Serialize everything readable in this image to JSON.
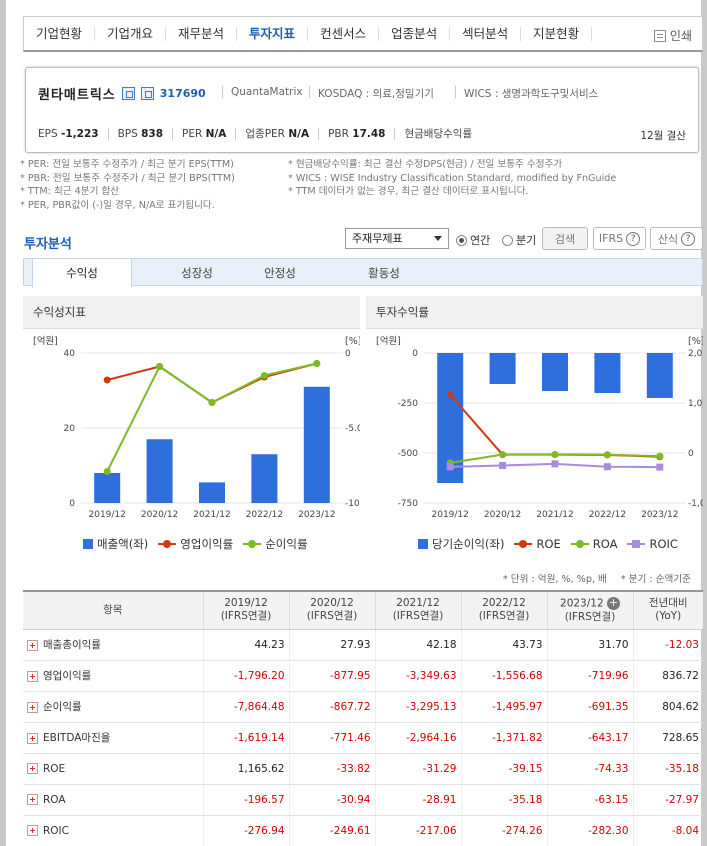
{
  "nav": {
    "items": [
      "기업현황",
      "기업개요",
      "재무분석",
      "투자지표",
      "컨센서스",
      "업종분석",
      "섹터분석",
      "지분현황"
    ],
    "active_index": 3,
    "print_label": "인쇄"
  },
  "company": {
    "name": "퀀타매트릭스",
    "code": "317690",
    "english": "QuantaMatrix",
    "market": "KOSDAQ : 의료,정밀기기",
    "wics": "WICS : 생명과학도구및서비스",
    "metrics": [
      {
        "label": "EPS",
        "value": "-1,223"
      },
      {
        "label": "BPS",
        "value": "838"
      },
      {
        "label": "PER",
        "value": "N/A"
      },
      {
        "label": "업종PER",
        "value": "N/A"
      },
      {
        "label": "PBR",
        "value": "17.48"
      },
      {
        "label": "현금배당수익률",
        "value": ""
      }
    ],
    "fiscal": "12월 결산"
  },
  "notes_left": [
    "* PER: 전일 보통주 수정주가 / 최근 분기 EPS(TTM)",
    "* PBR: 전일 보통주 수정주가 / 최근 분기 BPS(TTM)",
    "* TTM: 최근 4분기 합산",
    "* PER, PBR값이 (-)일 경우, N/A로 표기됩니다."
  ],
  "notes_right": [
    "* 현금배당수익률: 최근 결산 수정DPS(현금) / 전일 보통주 수정주가",
    "* WICS : WISE Industry Classification Standard, modified by FnGuide",
    "* TTM 데이터가 없는 경우, 최근 결산 데이터로 표시됩니다."
  ],
  "analysis": {
    "title": "투자분석",
    "select_value": "주재무제표",
    "radio_annual": "연간",
    "radio_quarter": "분기",
    "search_label": "검색",
    "ifrs_label": "IFRS",
    "formula_label": "산식"
  },
  "tabs": [
    "수익성",
    "성장성",
    "안정성",
    "활동성"
  ],
  "left_panel": {
    "title": "수익성지표",
    "unit_left": "[억원]",
    "unit_right": "[%]",
    "legend": [
      "매출액(좌)",
      "영업이익률",
      "순이익률"
    ]
  },
  "right_panel": {
    "title": "투자수익률",
    "unit_left": "[억원]",
    "unit_right": "[%]",
    "legend": [
      "당기순이익(좌)",
      "ROE",
      "ROA",
      "ROIC"
    ]
  },
  "units_note": "* 단위 : 억원, %, %p, 배",
  "quarter_note": "* 분기 : 순액기준",
  "colors": {
    "bar": "#2f6fdc",
    "red": "#d03a12",
    "green": "#7cbb25",
    "purple": "#a98ce0",
    "accent": "#1a5fb4"
  },
  "chart_data": [
    {
      "type": "bar",
      "title": "수익성지표",
      "categories": [
        "2019/12",
        "2020/12",
        "2021/12",
        "2022/12",
        "2023/12"
      ],
      "ylim_left": [
        0,
        40
      ],
      "yticks_left": [
        "40",
        "20",
        "0"
      ],
      "ylim_right": [
        -10,
        0
      ],
      "yticks_right": [
        "0",
        "-5.0",
        "-10."
      ],
      "series": [
        {
          "name": "매출액(좌)",
          "type": "bar",
          "axis": "left",
          "values": [
            8,
            17,
            5.5,
            13,
            31
          ]
        },
        {
          "name": "영업이익률",
          "type": "line",
          "axis": "right",
          "values": [
            -1.8,
            -0.9,
            -3.3,
            -1.6,
            -0.7
          ]
        },
        {
          "name": "순이익률",
          "type": "line",
          "axis": "right",
          "values": [
            -7.9,
            -0.9,
            -3.3,
            -1.5,
            -0.7
          ]
        }
      ]
    },
    {
      "type": "bar",
      "title": "투자수익률",
      "categories": [
        "2019/12",
        "2020/12",
        "2021/12",
        "2022/12",
        "2023/12"
      ],
      "ylim_left": [
        -750,
        0
      ],
      "yticks_left": [
        "0",
        "-250",
        "-500",
        "-750"
      ],
      "ylim_right": [
        -1000,
        2000
      ],
      "yticks_right": [
        "2,000",
        "1,000",
        "0",
        "-1,000"
      ],
      "series": [
        {
          "name": "당기순이익(좌)",
          "type": "bar",
          "axis": "left",
          "values": [
            -650,
            -155,
            -190,
            -200,
            -225
          ]
        },
        {
          "name": "ROE",
          "type": "line",
          "axis": "right",
          "values": [
            1165.62,
            -33.82,
            -31.29,
            -39.15,
            -74.33
          ]
        },
        {
          "name": "ROA",
          "type": "line",
          "axis": "right",
          "values": [
            -196.57,
            -30.94,
            -28.91,
            -35.18,
            -63.15
          ]
        },
        {
          "name": "ROIC",
          "type": "line",
          "axis": "right",
          "values": [
            -276.94,
            -249.61,
            -217.06,
            -274.26,
            -282.3
          ]
        }
      ]
    }
  ],
  "table": {
    "header_item": "항목",
    "columns": [
      {
        "year": "2019/12",
        "basis": "(IFRS연결)"
      },
      {
        "year": "2020/12",
        "basis": "(IFRS연결)"
      },
      {
        "year": "2021/12",
        "basis": "(IFRS연결)"
      },
      {
        "year": "2022/12",
        "basis": "(IFRS연결)"
      },
      {
        "year": "2023/12",
        "basis": "(IFRS연결)"
      }
    ],
    "yoy_header": "전년대비",
    "yoy_sub": "(YoY)",
    "rows": [
      {
        "label": "매출총이익률",
        "values": [
          "44.23",
          "27.93",
          "42.18",
          "43.73",
          "31.70"
        ],
        "yoy": "-12.03"
      },
      {
        "label": "영업이익률",
        "values": [
          "-1,796.20",
          "-877.95",
          "-3,349.63",
          "-1,556.68",
          "-719.96"
        ],
        "yoy": "836.72"
      },
      {
        "label": "순이익률",
        "values": [
          "-7,864.48",
          "-867.72",
          "-3,295.13",
          "-1,495.97",
          "-691.35"
        ],
        "yoy": "804.62"
      },
      {
        "label": "EBITDA마진율",
        "values": [
          "-1,619.14",
          "-771.46",
          "-2,964.16",
          "-1,371.82",
          "-643.17"
        ],
        "yoy": "728.65"
      },
      {
        "label": "ROE",
        "values": [
          "1,165.62",
          "-33.82",
          "-31.29",
          "-39.15",
          "-74.33"
        ],
        "yoy": "-35.18"
      },
      {
        "label": "ROA",
        "values": [
          "-196.57",
          "-30.94",
          "-28.91",
          "-35.18",
          "-63.15"
        ],
        "yoy": "-27.97"
      },
      {
        "label": "ROIC",
        "values": [
          "-276.94",
          "-249.61",
          "-217.06",
          "-274.26",
          "-282.30"
        ],
        "yoy": "-8.04"
      }
    ]
  }
}
